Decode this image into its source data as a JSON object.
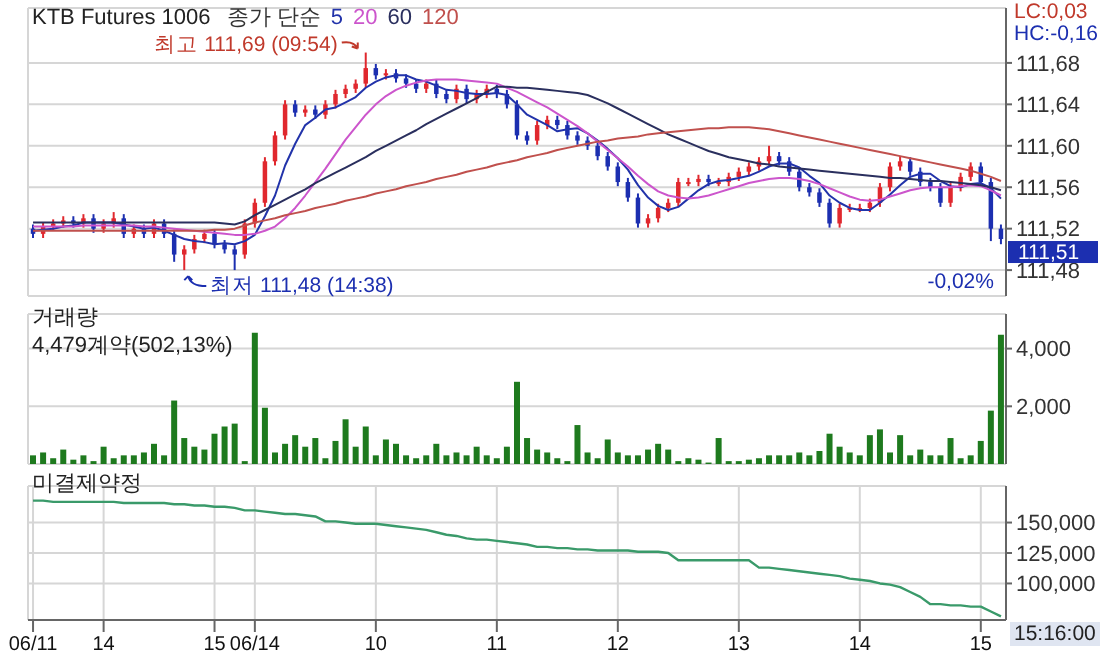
{
  "chart_data": [
    {
      "type": "candlestick",
      "title": "KTB Futures 1006",
      "legend_title": "종가 단순",
      "legend": "top left",
      "grid": true,
      "tick_labels": "y",
      "categories": [
        null,
        null,
        null,
        null,
        null,
        null,
        null,
        null,
        null,
        null,
        null,
        null,
        null,
        null,
        null,
        null,
        null,
        null,
        null,
        null,
        null,
        null,
        null,
        null,
        null,
        null,
        null,
        null,
        null,
        null,
        null,
        null,
        null,
        null,
        null,
        null,
        null,
        null,
        null,
        null,
        null,
        null,
        null,
        null,
        null,
        null,
        null,
        null,
        null,
        null,
        null,
        null,
        null,
        null,
        null,
        null,
        null,
        null,
        null,
        null,
        null,
        null,
        null,
        null,
        null,
        null,
        null,
        null,
        null,
        null,
        null,
        null,
        null,
        null,
        null,
        null,
        null,
        null,
        null,
        null,
        null,
        null,
        null,
        null,
        null,
        null,
        null,
        null,
        null,
        null,
        null,
        null,
        null,
        null,
        null,
        null,
        null
      ],
      "ohlc": [
        [
          111.52,
          111.524,
          111.511,
          111.515
        ],
        [
          111.515,
          111.526,
          111.511,
          111.522
        ],
        [
          111.522,
          111.529,
          111.518,
          111.525
        ],
        [
          111.525,
          111.532,
          111.521,
          111.528
        ],
        [
          111.528,
          111.532,
          111.521,
          111.525
        ],
        [
          111.525,
          111.534,
          111.521,
          111.53
        ],
        [
          111.53,
          111.534,
          111.516,
          111.52
        ],
        [
          111.52,
          111.529,
          111.516,
          111.525
        ],
        [
          111.525,
          111.536,
          111.521,
          111.53
        ],
        [
          111.53,
          111.534,
          111.511,
          111.515
        ],
        [
          111.515,
          111.524,
          111.511,
          111.52
        ],
        [
          111.52,
          111.524,
          111.511,
          111.515
        ],
        [
          111.515,
          111.529,
          111.511,
          111.525
        ],
        [
          111.525,
          111.529,
          111.511,
          111.515
        ],
        [
          111.515,
          111.519,
          111.488,
          111.495
        ],
        [
          111.495,
          111.504,
          111.48,
          111.5
        ],
        [
          111.5,
          111.514,
          111.496,
          111.51
        ],
        [
          111.51,
          111.519,
          111.506,
          111.515
        ],
        [
          111.515,
          111.519,
          111.501,
          111.505
        ],
        [
          111.505,
          111.509,
          111.496,
          111.5
        ],
        [
          111.5,
          111.504,
          111.48,
          111.495
        ],
        [
          111.495,
          111.529,
          111.491,
          111.525
        ],
        [
          111.525,
          111.549,
          111.521,
          111.545
        ],
        [
          111.545,
          111.589,
          111.541,
          111.585
        ],
        [
          111.585,
          111.614,
          111.581,
          111.61
        ],
        [
          111.61,
          111.644,
          111.606,
          111.64
        ],
        [
          111.64,
          111.644,
          111.628,
          111.632
        ],
        [
          111.632,
          111.639,
          111.628,
          111.635
        ],
        [
          111.635,
          111.639,
          111.626,
          111.63
        ],
        [
          111.63,
          111.644,
          111.626,
          111.64
        ],
        [
          111.64,
          111.654,
          111.636,
          111.65
        ],
        [
          111.65,
          111.659,
          111.646,
          111.655
        ],
        [
          111.655,
          111.664,
          111.651,
          111.66
        ],
        [
          111.66,
          111.69,
          111.656,
          111.675
        ],
        [
          111.675,
          111.679,
          111.664,
          111.668
        ],
        [
          111.668,
          111.674,
          111.664,
          111.67
        ],
        [
          111.67,
          111.674,
          111.661,
          111.665
        ],
        [
          111.665,
          111.669,
          111.656,
          111.66
        ],
        [
          111.66,
          111.664,
          111.651,
          111.655
        ],
        [
          111.655,
          111.664,
          111.651,
          111.66
        ],
        [
          111.66,
          111.664,
          111.646,
          111.65
        ],
        [
          111.65,
          111.654,
          111.641,
          111.645
        ],
        [
          111.645,
          111.659,
          111.641,
          111.655
        ],
        [
          111.655,
          111.659,
          111.641,
          111.645
        ],
        [
          111.645,
          111.654,
          111.641,
          111.65
        ],
        [
          111.65,
          111.659,
          111.646,
          111.655
        ],
        [
          111.655,
          111.659,
          111.646,
          111.65
        ],
        [
          111.65,
          111.654,
          111.636,
          111.64
        ],
        [
          111.64,
          111.644,
          111.606,
          111.61
        ],
        [
          111.61,
          111.614,
          111.601,
          111.605
        ],
        [
          111.605,
          111.624,
          111.601,
          111.62
        ],
        [
          111.62,
          111.629,
          111.616,
          111.625
        ],
        [
          111.625,
          111.629,
          111.616,
          111.62
        ],
        [
          111.62,
          111.624,
          111.606,
          111.61
        ],
        [
          111.61,
          111.614,
          111.601,
          111.605
        ],
        [
          111.605,
          111.609,
          111.596,
          111.6
        ],
        [
          111.6,
          111.604,
          111.586,
          111.59
        ],
        [
          111.59,
          111.594,
          111.576,
          111.58
        ],
        [
          111.58,
          111.584,
          111.561,
          111.565
        ],
        [
          111.565,
          111.569,
          111.546,
          111.55
        ],
        [
          111.55,
          111.554,
          111.521,
          111.525
        ],
        [
          111.525,
          111.534,
          111.521,
          111.53
        ],
        [
          111.53,
          111.544,
          111.526,
          111.54
        ],
        [
          111.54,
          111.549,
          111.536,
          111.545
        ],
        [
          111.545,
          111.569,
          111.541,
          111.565
        ],
        [
          111.565,
          111.569,
          111.561,
          111.565
        ],
        [
          111.565,
          111.572,
          111.561,
          111.568
        ],
        [
          111.568,
          111.572,
          111.561,
          111.565
        ],
        [
          111.565,
          111.569,
          111.561,
          111.565
        ],
        [
          111.565,
          111.574,
          111.561,
          111.57
        ],
        [
          111.57,
          111.579,
          111.566,
          111.575
        ],
        [
          111.575,
          111.584,
          111.571,
          111.58
        ],
        [
          111.58,
          111.589,
          111.576,
          111.585
        ],
        [
          111.585,
          111.6,
          111.581,
          111.59
        ],
        [
          111.59,
          111.594,
          111.581,
          111.585
        ],
        [
          111.585,
          111.589,
          111.571,
          111.575
        ],
        [
          111.575,
          111.579,
          111.556,
          111.56
        ],
        [
          111.56,
          111.564,
          111.551,
          111.555
        ],
        [
          111.555,
          111.559,
          111.541,
          111.545
        ],
        [
          111.545,
          111.549,
          111.521,
          111.525
        ],
        [
          111.525,
          111.544,
          111.521,
          111.54
        ],
        [
          111.54,
          111.544,
          111.536,
          111.54
        ],
        [
          111.54,
          111.544,
          111.536,
          111.54
        ],
        [
          111.54,
          111.549,
          111.536,
          111.545
        ],
        [
          111.545,
          111.564,
          111.541,
          111.56
        ],
        [
          111.56,
          111.584,
          111.556,
          111.58
        ],
        [
          111.58,
          111.59,
          111.576,
          111.585
        ],
        [
          111.585,
          111.589,
          111.571,
          111.575
        ],
        [
          111.575,
          111.579,
          111.561,
          111.565
        ],
        [
          111.565,
          111.569,
          111.556,
          111.56
        ],
        [
          111.56,
          111.564,
          111.541,
          111.545
        ],
        [
          111.545,
          111.564,
          111.541,
          111.56
        ],
        [
          111.56,
          111.574,
          111.556,
          111.57
        ],
        [
          111.57,
          111.584,
          111.566,
          111.58
        ],
        [
          111.58,
          111.584,
          111.561,
          111.565
        ],
        [
          111.565,
          111.569,
          111.508,
          111.52
        ],
        [
          111.52,
          111.524,
          111.505,
          111.51
        ]
      ],
      "colors": [
        "#1c2fb0",
        "#e0282e",
        "#e0282e",
        "#e0282e",
        "#1c2fb0",
        "#e0282e",
        "#1c2fb0",
        "#e0282e",
        "#e0282e",
        "#1c2fb0",
        "#e0282e",
        "#1c2fb0",
        "#e0282e",
        "#1c2fb0",
        "#1c2fb0",
        "#e0282e",
        "#e0282e",
        "#e0282e",
        "#1c2fb0",
        "#1c2fb0",
        "#1c2fb0",
        "#e0282e",
        "#e0282e",
        "#e0282e",
        "#e0282e",
        "#e0282e",
        "#1c2fb0",
        "#e0282e",
        "#1c2fb0",
        "#e0282e",
        "#e0282e",
        "#e0282e",
        "#e0282e",
        "#e0282e",
        "#1c2fb0",
        "#e0282e",
        "#1c2fb0",
        "#1c2fb0",
        "#1c2fb0",
        "#e0282e",
        "#1c2fb0",
        "#1c2fb0",
        "#e0282e",
        "#1c2fb0",
        "#e0282e",
        "#e0282e",
        "#1c2fb0",
        "#1c2fb0",
        "#1c2fb0",
        "#1c2fb0",
        "#e0282e",
        "#e0282e",
        "#1c2fb0",
        "#1c2fb0",
        "#1c2fb0",
        "#1c2fb0",
        "#1c2fb0",
        "#1c2fb0",
        "#1c2fb0",
        "#1c2fb0",
        "#1c2fb0",
        "#e0282e",
        "#e0282e",
        "#e0282e",
        "#e0282e",
        "#e0282e",
        "#e0282e",
        "#1c2fb0",
        "#e0282e",
        "#e0282e",
        "#e0282e",
        "#e0282e",
        "#e0282e",
        "#e0282e",
        "#1c2fb0",
        "#1c2fb0",
        "#1c2fb0",
        "#1c2fb0",
        "#1c2fb0",
        "#1c2fb0",
        "#e0282e",
        "#e0282e",
        "#e0282e",
        "#e0282e",
        "#e0282e",
        "#e0282e",
        "#e0282e",
        "#1c2fb0",
        "#1c2fb0",
        "#1c2fb0",
        "#1c2fb0",
        "#e0282e",
        "#e0282e",
        "#e0282e",
        "#1c2fb0",
        "#1c2fb0",
        "#1c2fb0"
      ],
      "series": [
        {
          "type": "line",
          "name": "5",
          "color": "#2233aa",
          "values": [
            111.518,
            111.519,
            111.52,
            111.522,
            111.523,
            111.526,
            111.526,
            111.526,
            111.526,
            111.524,
            111.522,
            111.52,
            111.521,
            111.518,
            111.514,
            111.51,
            111.508,
            111.507,
            111.505,
            111.506,
            111.505,
            111.508,
            111.514,
            111.532,
            111.552,
            111.581,
            111.602,
            111.62,
            111.627,
            111.635,
            111.637,
            111.642,
            111.647,
            111.656,
            111.662,
            111.666,
            111.668,
            111.668,
            111.664,
            111.662,
            111.658,
            111.654,
            111.653,
            111.651,
            111.65,
            111.65,
            111.651,
            111.649,
            111.64,
            111.63,
            111.625,
            111.62,
            111.614,
            111.616,
            111.617,
            111.612,
            111.605,
            111.597,
            111.588,
            111.577,
            111.562,
            111.55,
            111.542,
            111.538,
            111.541,
            111.549,
            111.557,
            111.563,
            111.566,
            111.567,
            111.569,
            111.571,
            111.575,
            111.58,
            111.583,
            111.583,
            111.579,
            111.571,
            111.564,
            111.552,
            111.545,
            111.54,
            111.538,
            111.538,
            111.545,
            111.553,
            111.562,
            111.57,
            111.573,
            111.573,
            111.566,
            111.561,
            111.56,
            111.563,
            111.564,
            111.559,
            111.549
          ]
        },
        {
          "type": "line",
          "name": "20",
          "color": "#cc55cc",
          "values": [
            111.522,
            111.522,
            111.522,
            111.522,
            111.522,
            111.523,
            111.523,
            111.523,
            111.523,
            111.523,
            111.523,
            111.522,
            111.522,
            111.521,
            111.52,
            111.519,
            111.518,
            111.517,
            111.516,
            111.515,
            111.514,
            111.514,
            111.515,
            111.518,
            111.522,
            111.53,
            111.54,
            111.552,
            111.565,
            111.578,
            111.592,
            111.606,
            111.618,
            111.63,
            111.64,
            111.648,
            111.654,
            111.658,
            111.661,
            111.663,
            111.664,
            111.664,
            111.664,
            111.663,
            111.662,
            111.661,
            111.66,
            111.656,
            111.652,
            111.647,
            111.642,
            111.637,
            111.631,
            111.625,
            111.619,
            111.612,
            111.604,
            111.596,
            111.588,
            111.58,
            111.571,
            111.563,
            111.556,
            111.552,
            111.55,
            111.549,
            111.55,
            111.552,
            111.555,
            111.558,
            111.561,
            111.564,
            111.566,
            111.568,
            111.569,
            111.569,
            111.568,
            111.566,
            111.563,
            111.559,
            111.555,
            111.551,
            111.548,
            111.547,
            111.548,
            111.551,
            111.554,
            111.557,
            111.559,
            111.56,
            111.56,
            111.56,
            111.561,
            111.562,
            111.561,
            111.557,
            111.552
          ]
        },
        {
          "type": "line",
          "name": "60",
          "color": "#2a2f5e",
          "values": [
            111.526,
            111.526,
            111.526,
            111.526,
            111.526,
            111.526,
            111.526,
            111.526,
            111.526,
            111.526,
            111.526,
            111.526,
            111.526,
            111.526,
            111.526,
            111.526,
            111.526,
            111.526,
            111.526,
            111.525,
            111.524,
            111.527,
            111.533,
            111.538,
            111.543,
            111.548,
            111.553,
            111.558,
            111.564,
            111.569,
            111.574,
            111.579,
            111.584,
            111.589,
            111.595,
            111.6,
            111.605,
            111.61,
            111.615,
            111.621,
            111.626,
            111.631,
            111.636,
            111.641,
            111.646,
            111.652,
            111.657,
            111.657,
            111.656,
            111.656,
            111.655,
            111.654,
            111.653,
            111.652,
            111.651,
            111.649,
            111.645,
            111.641,
            111.636,
            111.631,
            111.626,
            111.621,
            111.616,
            111.611,
            111.607,
            111.603,
            111.599,
            111.595,
            111.592,
            111.589,
            111.587,
            111.585,
            111.583,
            111.582,
            111.58,
            111.579,
            111.578,
            111.577,
            111.576,
            111.575,
            111.574,
            111.573,
            111.572,
            111.571,
            111.57,
            111.569,
            111.569,
            111.568,
            111.567,
            111.566,
            111.566,
            111.565,
            111.564,
            111.563,
            111.562,
            111.56,
            111.557
          ]
        },
        {
          "type": "line",
          "name": "120",
          "color": "#c0504d",
          "values": [
            111.518,
            111.518,
            111.518,
            111.518,
            111.518,
            111.518,
            111.518,
            111.518,
            111.518,
            111.518,
            111.518,
            111.518,
            111.518,
            111.518,
            111.518,
            111.518,
            111.518,
            111.518,
            111.519,
            111.519,
            111.52,
            111.523,
            111.526,
            111.528,
            111.53,
            111.533,
            111.535,
            111.537,
            111.54,
            111.542,
            111.544,
            111.547,
            111.549,
            111.551,
            111.554,
            111.556,
            111.558,
            111.561,
            111.563,
            111.565,
            111.568,
            111.57,
            111.572,
            111.575,
            111.577,
            111.579,
            111.582,
            111.584,
            111.586,
            111.589,
            111.591,
            111.593,
            111.596,
            111.598,
            111.6,
            111.602,
            111.604,
            111.605,
            111.607,
            111.608,
            111.609,
            111.611,
            111.612,
            111.613,
            111.614,
            111.615,
            111.616,
            111.617,
            111.617,
            111.618,
            111.618,
            111.618,
            111.617,
            111.616,
            111.614,
            111.612,
            111.61,
            111.608,
            111.606,
            111.604,
            111.602,
            111.6,
            111.598,
            111.596,
            111.594,
            111.592,
            111.59,
            111.588,
            111.586,
            111.584,
            111.582,
            111.58,
            111.578,
            111.576,
            111.573,
            111.57,
            111.566
          ]
        }
      ],
      "ylim": [
        111.455,
        111.733
      ],
      "yticks": [
        {
          "value": 111.48,
          "label": "111,48"
        },
        {
          "value": 111.52,
          "label": "111,52"
        },
        {
          "value": 111.56,
          "label": "111,56"
        },
        {
          "value": 111.6,
          "label": "111,60"
        },
        {
          "value": 111.64,
          "label": "111,64"
        },
        {
          "value": 111.68,
          "label": "111,68"
        }
      ],
      "annotations": [
        "최고 111,69 (09:54)",
        "최저 111,48 (14:38)",
        "111,51",
        "-0,02%",
        "LC:0,03",
        "HC:-0,16"
      ]
    },
    {
      "type": "bar",
      "title": "거래량",
      "subtitle": "4,479계약(502,13%)",
      "grid": true,
      "tick_labels": "y",
      "color": "#1e7a1e",
      "categories": [
        null,
        null,
        null,
        null,
        null,
        null,
        null,
        null,
        null,
        null,
        null,
        null,
        null,
        null,
        null,
        null,
        null,
        null,
        null,
        null,
        null,
        null,
        null,
        null,
        null,
        null,
        null,
        null,
        null,
        null,
        null,
        null,
        null,
        null,
        null,
        null,
        null,
        null,
        null,
        null,
        null,
        null,
        null,
        null,
        null,
        null,
        null,
        null,
        null,
        null,
        null,
        null,
        null,
        null,
        null,
        null,
        null,
        null,
        null,
        null,
        null,
        null,
        null,
        null,
        null,
        null,
        null,
        null,
        null,
        null,
        null,
        null,
        null,
        null,
        null,
        null,
        null,
        null,
        null,
        null,
        null,
        null,
        null,
        null,
        null,
        null,
        null,
        null,
        null,
        null,
        null,
        null,
        null,
        null,
        null,
        null,
        null
      ],
      "values": [
        300,
        400,
        200,
        500,
        150,
        300,
        100,
        600,
        200,
        300,
        300,
        400,
        700,
        300,
        2200,
        900,
        600,
        500,
        1050,
        1300,
        1400,
        100,
        4550,
        1950,
        400,
        700,
        1000,
        600,
        900,
        200,
        800,
        1550,
        600,
        1300,
        300,
        850,
        700,
        300,
        200,
        300,
        700,
        300,
        400,
        300,
        600,
        300,
        200,
        600,
        2850,
        900,
        500,
        400,
        200,
        100,
        1350,
        400,
        200,
        850,
        400,
        300,
        300,
        500,
        700,
        500,
        100,
        200,
        150,
        50,
        900,
        100,
        100,
        150,
        200,
        300,
        300,
        300,
        400,
        300,
        450,
        1050,
        600,
        400,
        300,
        1000,
        1200,
        400,
        1000,
        300,
        500,
        300,
        300,
        900,
        200,
        300,
        800,
        1850,
        4479
      ],
      "ylim": [
        0,
        5200
      ],
      "yticks": [
        {
          "value": 2000,
          "label": "2,000"
        },
        {
          "value": 4000,
          "label": "4,000"
        }
      ]
    },
    {
      "type": "line",
      "title": "미결제약정",
      "grid": true,
      "color": "#3a9a6a",
      "categories": [
        "06/11",
        null,
        null,
        null,
        null,
        null,
        null,
        "14",
        null,
        null,
        null,
        null,
        null,
        null,
        null,
        null,
        null,
        null,
        "15",
        null,
        null,
        null,
        "06/14",
        null,
        null,
        null,
        null,
        null,
        null,
        null,
        null,
        null,
        null,
        null,
        "10",
        null,
        null,
        null,
        null,
        null,
        null,
        null,
        null,
        null,
        null,
        null,
        "11",
        null,
        null,
        null,
        null,
        null,
        null,
        null,
        null,
        null,
        null,
        null,
        "12",
        null,
        null,
        null,
        null,
        null,
        null,
        null,
        null,
        null,
        null,
        null,
        "13",
        null,
        null,
        null,
        null,
        null,
        null,
        null,
        null,
        null,
        null,
        null,
        "14",
        null,
        null,
        null,
        null,
        null,
        null,
        null,
        null,
        null,
        null,
        null,
        "15",
        null,
        null
      ],
      "values": [
        168000,
        168000,
        167000,
        167000,
        167000,
        167000,
        167000,
        167000,
        167000,
        166000,
        166000,
        166000,
        166000,
        166000,
        165000,
        165000,
        164000,
        164000,
        163000,
        163000,
        162000,
        160000,
        160000,
        159000,
        158000,
        157000,
        157000,
        156000,
        155000,
        151000,
        151000,
        150000,
        149000,
        149000,
        149000,
        148000,
        147000,
        146000,
        145000,
        144000,
        142000,
        140000,
        139000,
        137000,
        136000,
        136000,
        135000,
        134000,
        133000,
        132000,
        130000,
        130000,
        129000,
        129000,
        128000,
        128000,
        127000,
        127000,
        127000,
        127000,
        126000,
        126000,
        126000,
        125000,
        119000,
        119000,
        119000,
        119000,
        119000,
        119000,
        119000,
        119000,
        113000,
        113000,
        112000,
        111000,
        110000,
        109000,
        108000,
        107000,
        106000,
        104000,
        103000,
        102000,
        100000,
        99000,
        97000,
        93000,
        89000,
        83000,
        83000,
        82000,
        82000,
        81000,
        81000,
        77000,
        73000
      ],
      "ylim": [
        70000,
        180000
      ],
      "yticks": [
        {
          "value": 100000,
          "label": "100,000"
        },
        {
          "value": 125000,
          "label": "125,000"
        },
        {
          "value": 150000,
          "label": "150,000"
        }
      ],
      "annotations": [
        "15:16:00"
      ]
    }
  ]
}
